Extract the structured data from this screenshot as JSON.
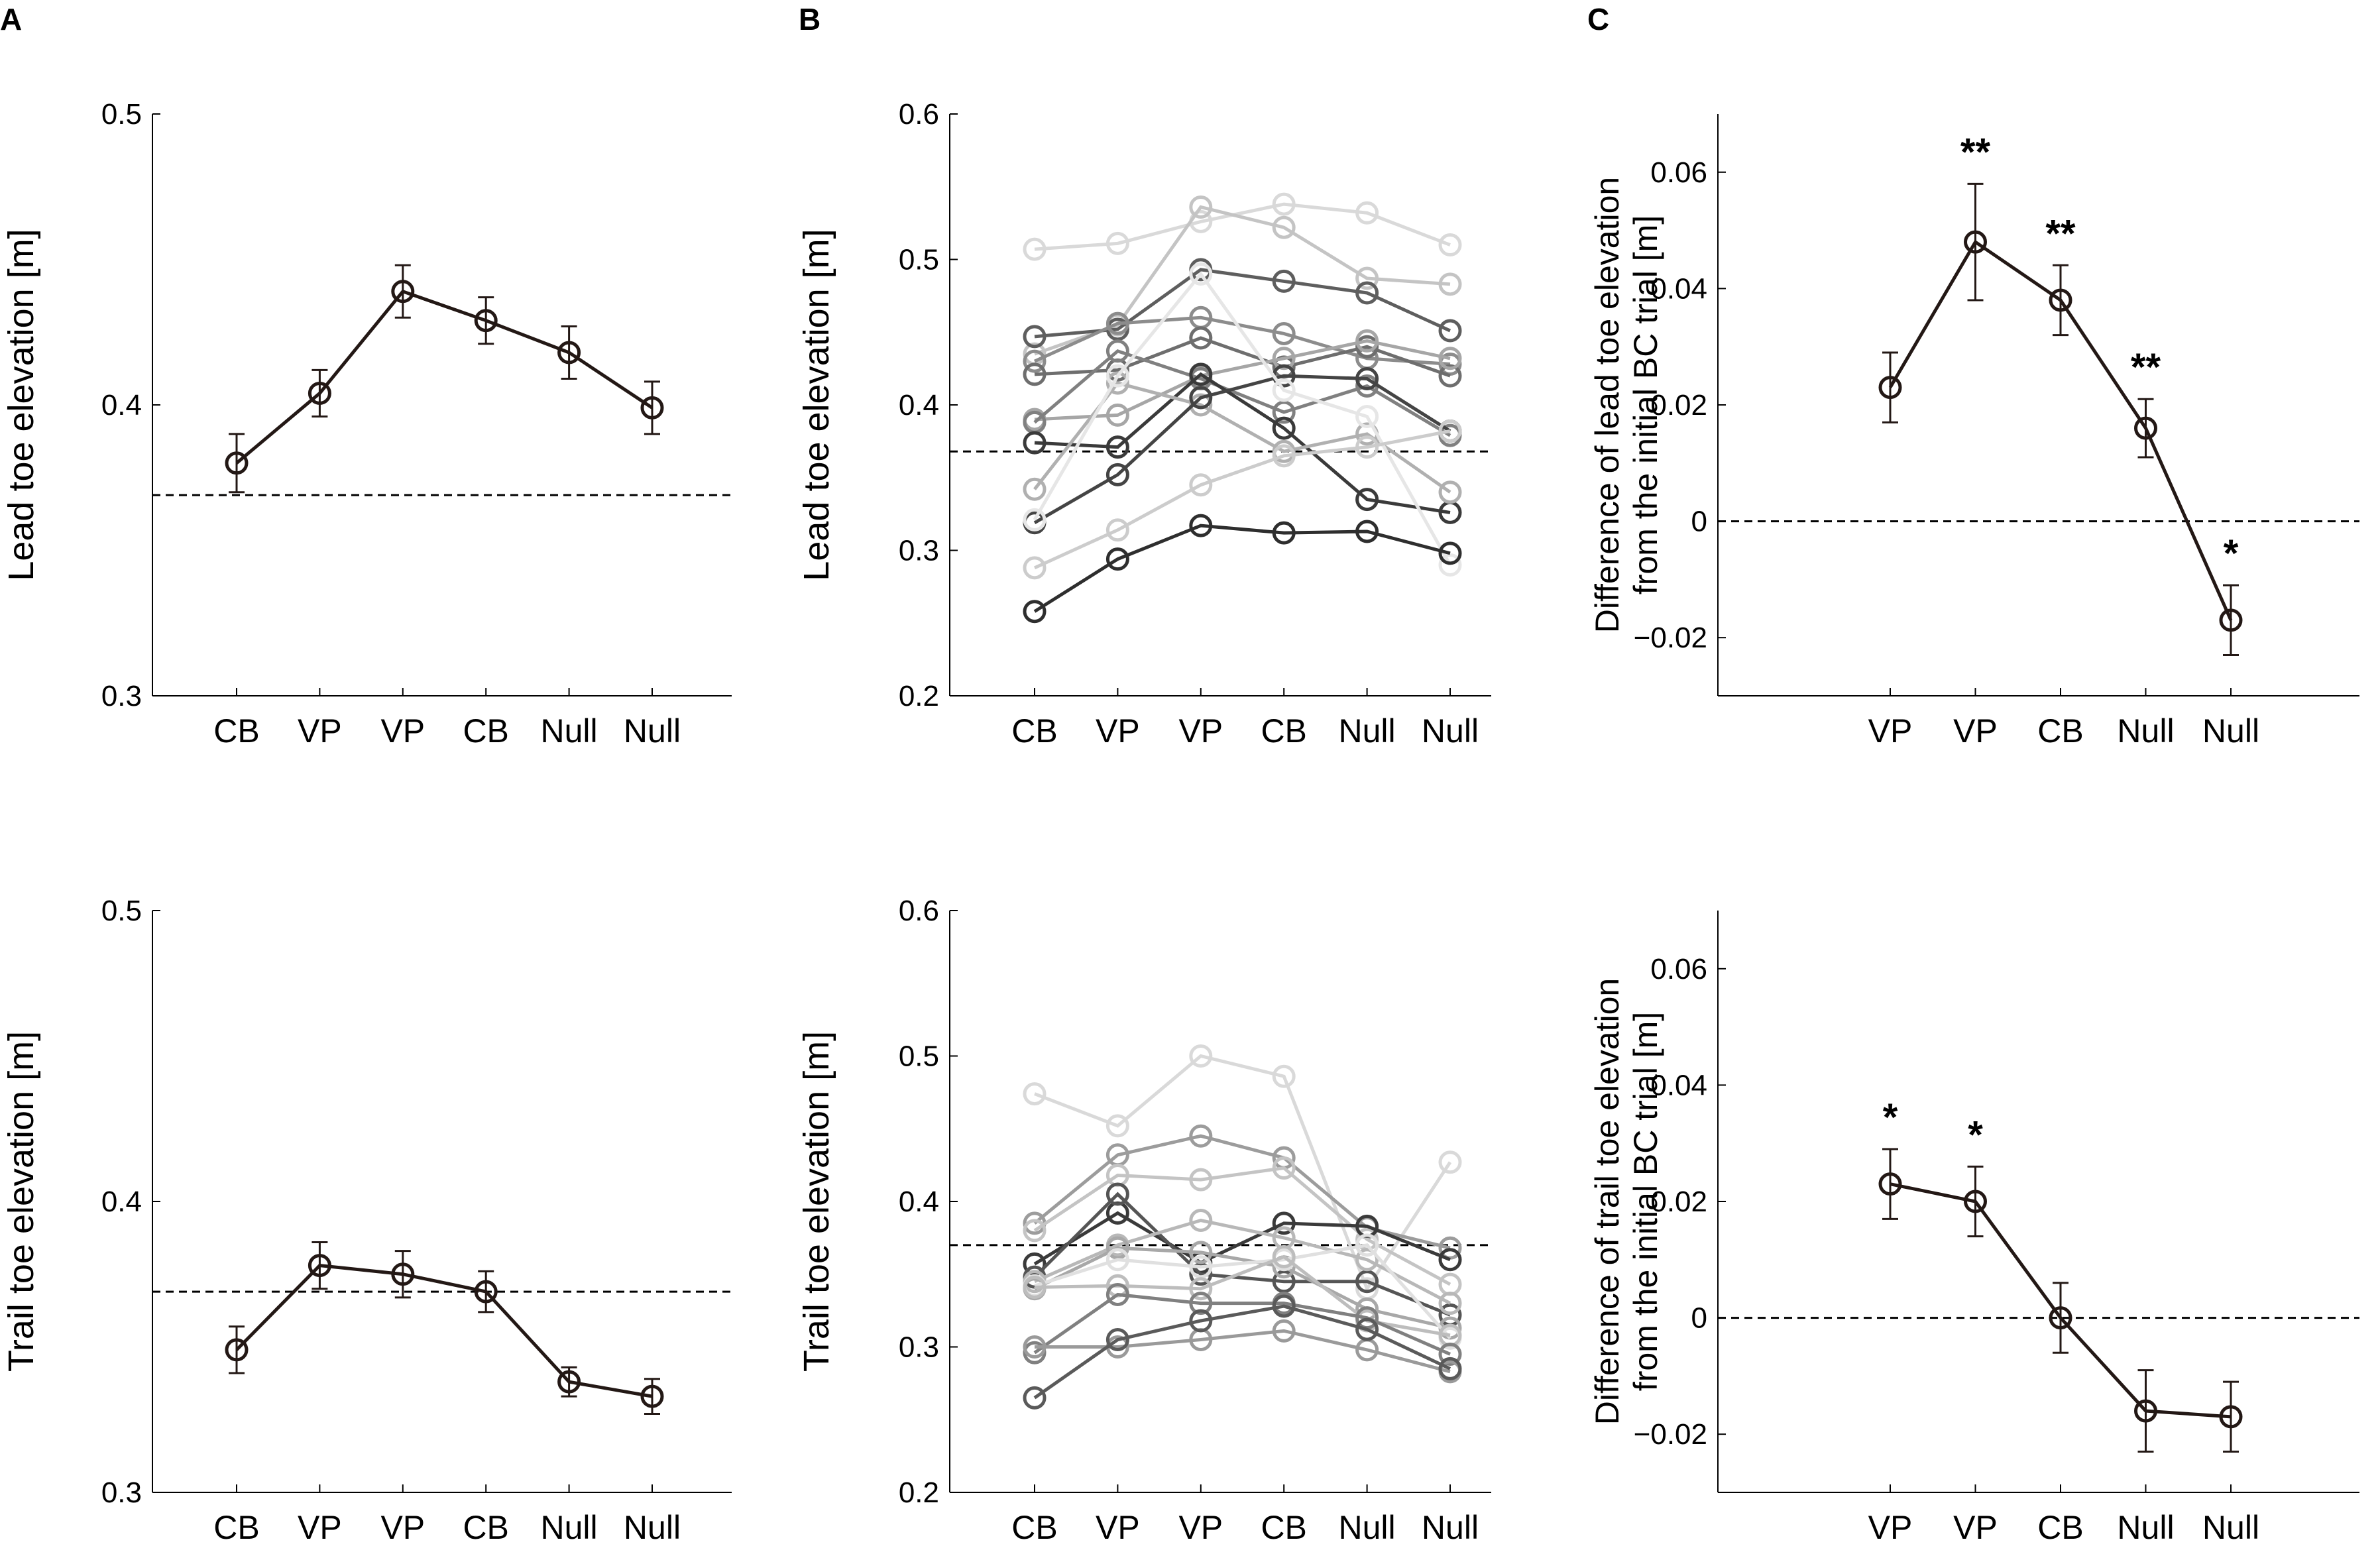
{
  "panel_labels": [
    "A",
    "B",
    "C"
  ],
  "chart_data": [
    {
      "id": "A-top",
      "panel": "A",
      "type": "line",
      "ylabel": "Lead toe elevation [m]",
      "categories": [
        "CB",
        "VP",
        "VP",
        "CB",
        "Null",
        "Null"
      ],
      "yticks": [
        "0.3",
        "0.4",
        "0.5"
      ],
      "ylim": [
        0.3,
        0.5
      ],
      "series": [
        {
          "name": "mean",
          "values": [
            0.38,
            0.404,
            0.439,
            0.429,
            0.418,
            0.399
          ],
          "error": [
            0.01,
            0.008,
            0.009,
            0.008,
            0.009,
            0.009
          ]
        }
      ],
      "reference_line": 0.369,
      "color": "#231815"
    },
    {
      "id": "A-bottom",
      "panel": "A",
      "type": "line",
      "ylabel": "Trail toe elevation [m]",
      "categories": [
        "CB",
        "VP",
        "VP",
        "CB",
        "Null",
        "Null"
      ],
      "yticks": [
        "0.3",
        "0.4",
        "0.5"
      ],
      "ylim": [
        0.3,
        0.5
      ],
      "series": [
        {
          "name": "mean",
          "values": [
            0.349,
            0.378,
            0.375,
            0.369,
            0.338,
            0.333
          ],
          "error": [
            0.008,
            0.008,
            0.008,
            0.007,
            0.005,
            0.006
          ]
        }
      ],
      "reference_line": 0.369,
      "color": "#231815"
    },
    {
      "id": "B-top",
      "panel": "B",
      "type": "line",
      "ylabel": "Lead toe elevation [m]",
      "categories": [
        "CB",
        "VP",
        "VP",
        "CB",
        "Null",
        "Null"
      ],
      "yticks": [
        "0.2",
        "0.3",
        "0.4",
        "0.5",
        "0.6"
      ],
      "ylim": [
        0.2,
        0.6
      ],
      "reference_line": 0.368,
      "series": [
        {
          "name": "S1",
          "color": "#d9d9d9",
          "values": [
            0.507,
            0.511,
            0.526,
            0.538,
            0.532,
            0.51
          ]
        },
        {
          "name": "S2",
          "color": "#c4c4c4",
          "values": [
            0.435,
            0.455,
            0.536,
            0.522,
            0.487,
            0.483
          ]
        },
        {
          "name": "S3",
          "color": "#5e5e5e",
          "values": [
            0.447,
            0.452,
            0.493,
            0.485,
            0.477,
            0.451
          ]
        },
        {
          "name": "S4",
          "color": "#8c8c8c",
          "values": [
            0.43,
            0.456,
            0.46,
            0.449,
            0.432,
            0.428
          ]
        },
        {
          "name": "S5",
          "color": "#6e6e6e",
          "values": [
            0.421,
            0.424,
            0.446,
            0.426,
            0.44,
            0.42
          ]
        },
        {
          "name": "S6",
          "color": "#a6a6a6",
          "values": [
            0.39,
            0.393,
            0.42,
            0.432,
            0.444,
            0.432
          ]
        },
        {
          "name": "S7",
          "color": "#808080",
          "values": [
            0.388,
            0.437,
            0.418,
            0.395,
            0.413,
            0.379
          ]
        },
        {
          "name": "S8",
          "color": "#3a3a3a",
          "values": [
            0.374,
            0.371,
            0.421,
            0.384,
            0.335,
            0.326
          ]
        },
        {
          "name": "S9",
          "color": "#b0b0b0",
          "values": [
            0.342,
            0.415,
            0.4,
            0.368,
            0.38,
            0.34
          ]
        },
        {
          "name": "S10",
          "color": "#444444",
          "values": [
            0.319,
            0.352,
            0.405,
            0.42,
            0.418,
            0.382
          ]
        },
        {
          "name": "S11",
          "color": "#e6e6e6",
          "values": [
            0.321,
            0.42,
            0.49,
            0.41,
            0.392,
            0.29
          ]
        },
        {
          "name": "S12",
          "color": "#cccccc",
          "values": [
            0.288,
            0.314,
            0.345,
            0.365,
            0.371,
            0.382
          ]
        },
        {
          "name": "S13",
          "color": "#2e2e2e",
          "values": [
            0.258,
            0.294,
            0.317,
            0.312,
            0.313,
            0.298
          ]
        }
      ]
    },
    {
      "id": "B-bottom",
      "panel": "B",
      "type": "line",
      "ylabel": "Trail toe elevation [m]",
      "categories": [
        "CB",
        "VP",
        "VP",
        "CB",
        "Null",
        "Null"
      ],
      "yticks": [
        "0.2",
        "0.3",
        "0.4",
        "0.5",
        "0.6"
      ],
      "ylim": [
        0.2,
        0.6
      ],
      "reference_line": 0.37,
      "series": [
        {
          "name": "S1",
          "color": "#d9d9d9",
          "values": [
            0.474,
            0.452,
            0.5,
            0.486,
            0.34,
            0.427
          ]
        },
        {
          "name": "S2",
          "color": "#9c9c9c",
          "values": [
            0.385,
            0.432,
            0.445,
            0.43,
            0.382,
            0.368
          ]
        },
        {
          "name": "S3",
          "color": "#c4c4c4",
          "values": [
            0.38,
            0.418,
            0.415,
            0.423,
            0.374,
            0.343
          ]
        },
        {
          "name": "S4",
          "color": "#3a3a3a",
          "values": [
            0.357,
            0.392,
            0.358,
            0.385,
            0.383,
            0.36
          ]
        },
        {
          "name": "S5",
          "color": "#555555",
          "values": [
            0.348,
            0.405,
            0.35,
            0.345,
            0.345,
            0.322
          ]
        },
        {
          "name": "S6",
          "color": "#b8b8b8",
          "values": [
            0.345,
            0.37,
            0.387,
            0.375,
            0.36,
            0.33
          ]
        },
        {
          "name": "S7",
          "color": "#a8a8a8",
          "values": [
            0.34,
            0.368,
            0.365,
            0.355,
            0.326,
            0.313
          ]
        },
        {
          "name": "S8",
          "color": "#e0e0e0",
          "values": [
            0.342,
            0.36,
            0.355,
            0.36,
            0.37,
            0.306
          ]
        },
        {
          "name": "S9",
          "color": "#bdbdbd",
          "values": [
            0.341,
            0.342,
            0.34,
            0.362,
            0.318,
            0.308
          ]
        },
        {
          "name": "S10",
          "color": "#808080",
          "values": [
            0.296,
            0.336,
            0.33,
            0.33,
            0.32,
            0.295
          ]
        },
        {
          "name": "S11",
          "color": "#9a9a9a",
          "values": [
            0.3,
            0.3,
            0.305,
            0.311,
            0.298,
            0.283
          ]
        },
        {
          "name": "S12",
          "color": "#5a5a5a",
          "values": [
            0.265,
            0.305,
            0.318,
            0.328,
            0.312,
            0.285
          ]
        }
      ]
    },
    {
      "id": "C-top",
      "panel": "C",
      "type": "line",
      "ylabel_lines": [
        "Difference of lead toe elevation",
        "from the initial BC trial [m]"
      ],
      "categories": [
        "VP",
        "VP",
        "CB",
        "Null",
        "Null"
      ],
      "yticks": [
        "−0.02",
        "0",
        "0.02",
        "0.04",
        "0.06"
      ],
      "ylim": [
        -0.03,
        0.07
      ],
      "series": [
        {
          "name": "mean",
          "values": [
            0.023,
            0.048,
            0.038,
            0.016,
            -0.017
          ],
          "error": [
            0.006,
            0.01,
            0.006,
            0.005,
            0.006
          ]
        }
      ],
      "significance": [
        "",
        "**",
        "**",
        "**",
        "*"
      ],
      "reference_line": 0,
      "color": "#231815"
    },
    {
      "id": "C-bottom",
      "panel": "C",
      "type": "line",
      "ylabel_lines": [
        "Difference of trail toe elevation",
        "from the initial BC trial [m]"
      ],
      "categories": [
        "VP",
        "VP",
        "CB",
        "Null",
        "Null"
      ],
      "yticks": [
        "−0.02",
        "0",
        "0.02",
        "0.04",
        "0.06"
      ],
      "ylim": [
        -0.03,
        0.07
      ],
      "series": [
        {
          "name": "mean",
          "values": [
            0.023,
            0.02,
            0,
            -0.016,
            -0.017
          ],
          "error": [
            0.006,
            0.006,
            0.006,
            0.007,
            0.006
          ]
        }
      ],
      "significance": [
        "*",
        "*",
        "",
        "",
        ""
      ],
      "reference_line": 0,
      "color": "#231815"
    }
  ]
}
